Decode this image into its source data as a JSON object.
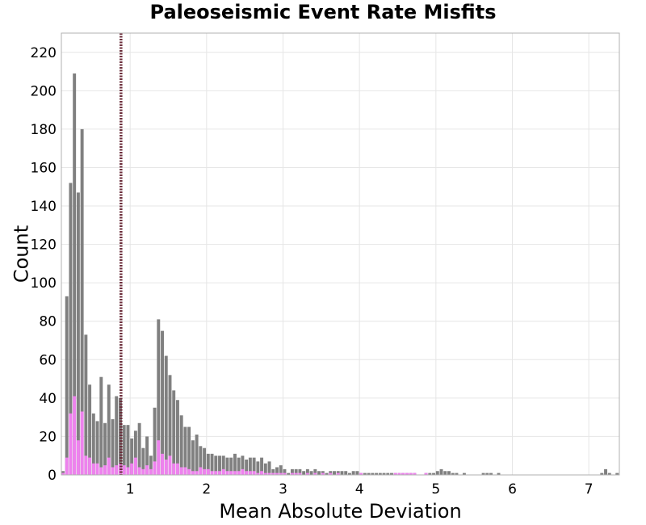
{
  "chart_data": {
    "type": "bar",
    "title": "Paleoseismic Event Rate Misfits",
    "xlabel": "Mean Absolute Deviation",
    "ylabel": "Count",
    "xlim": [
      0.1,
      7.4
    ],
    "ylim": [
      0,
      230
    ],
    "x_ticks": [
      1,
      2,
      3,
      4,
      5,
      6,
      7
    ],
    "y_ticks": [
      0,
      20,
      40,
      60,
      80,
      100,
      120,
      140,
      160,
      180,
      200,
      220
    ],
    "grid": true,
    "bin_start": 0.1,
    "bin_width": 0.05,
    "vertical_line_x": 0.88,
    "colors": {
      "series_total": "#808080",
      "series_subset": "#ee82ee",
      "vline": "#6b2d3a",
      "grid": "#e6e6e6",
      "frame": "#b0b0b0"
    },
    "series": [
      {
        "values": [
          2,
          93,
          152,
          209,
          147,
          180,
          73,
          47,
          32,
          28,
          51,
          27,
          47,
          29,
          41,
          40,
          26,
          26,
          19,
          23,
          27,
          14,
          20,
          10,
          35,
          81,
          75,
          62,
          52,
          44,
          39,
          31,
          25,
          25,
          18,
          21,
          15,
          14,
          11,
          11,
          10,
          10,
          10,
          9,
          9,
          11,
          9,
          10,
          8,
          9,
          9,
          7,
          9,
          6,
          7,
          3,
          4,
          5,
          3,
          1,
          3,
          3,
          3,
          2,
          3,
          2,
          3,
          2,
          2,
          1,
          2,
          2,
          2,
          2,
          2,
          1,
          2,
          2,
          1,
          1,
          1,
          1,
          1,
          1,
          1,
          1,
          1,
          1,
          1,
          1,
          1,
          1,
          1,
          0,
          0,
          1,
          1,
          1,
          2,
          3,
          2,
          2,
          1,
          1,
          0,
          1,
          0,
          0,
          0,
          0,
          1,
          1,
          1,
          0,
          1,
          0,
          0,
          0,
          0,
          0,
          0,
          0,
          0,
          0,
          0,
          0,
          0,
          0,
          0,
          0,
          0,
          0,
          0,
          0,
          0,
          0,
          0,
          0,
          0,
          0,
          0,
          1,
          3,
          1,
          0,
          1
        ]
      },
      {
        "values": [
          1,
          9,
          32,
          41,
          18,
          33,
          10,
          9,
          6,
          6,
          4,
          5,
          9,
          4,
          5,
          6,
          5,
          4,
          6,
          9,
          4,
          3,
          5,
          3,
          7,
          18,
          11,
          8,
          10,
          6,
          6,
          4,
          4,
          3,
          2,
          2,
          4,
          3,
          3,
          2,
          2,
          2,
          3,
          2,
          2,
          2,
          2,
          3,
          2,
          2,
          2,
          1,
          2,
          1,
          1,
          1,
          1,
          1,
          1,
          0,
          1,
          1,
          1,
          0,
          1,
          0,
          1,
          0,
          1,
          0,
          1,
          0,
          1,
          0,
          0,
          0,
          0,
          0,
          1,
          0,
          0,
          0,
          0,
          0,
          0,
          0,
          0,
          1,
          1,
          1,
          1,
          1,
          1,
          0,
          0,
          1,
          0,
          0,
          0,
          0,
          0,
          0,
          0,
          0,
          0,
          0,
          0,
          0,
          0,
          0,
          0,
          0,
          0,
          0,
          0,
          0,
          0,
          0,
          0,
          0,
          0,
          0,
          0,
          0,
          0,
          0,
          0,
          0,
          0,
          0,
          0,
          0,
          0,
          0,
          0,
          0,
          0,
          0,
          0,
          0,
          0,
          0,
          0,
          0,
          0,
          0
        ]
      }
    ]
  }
}
